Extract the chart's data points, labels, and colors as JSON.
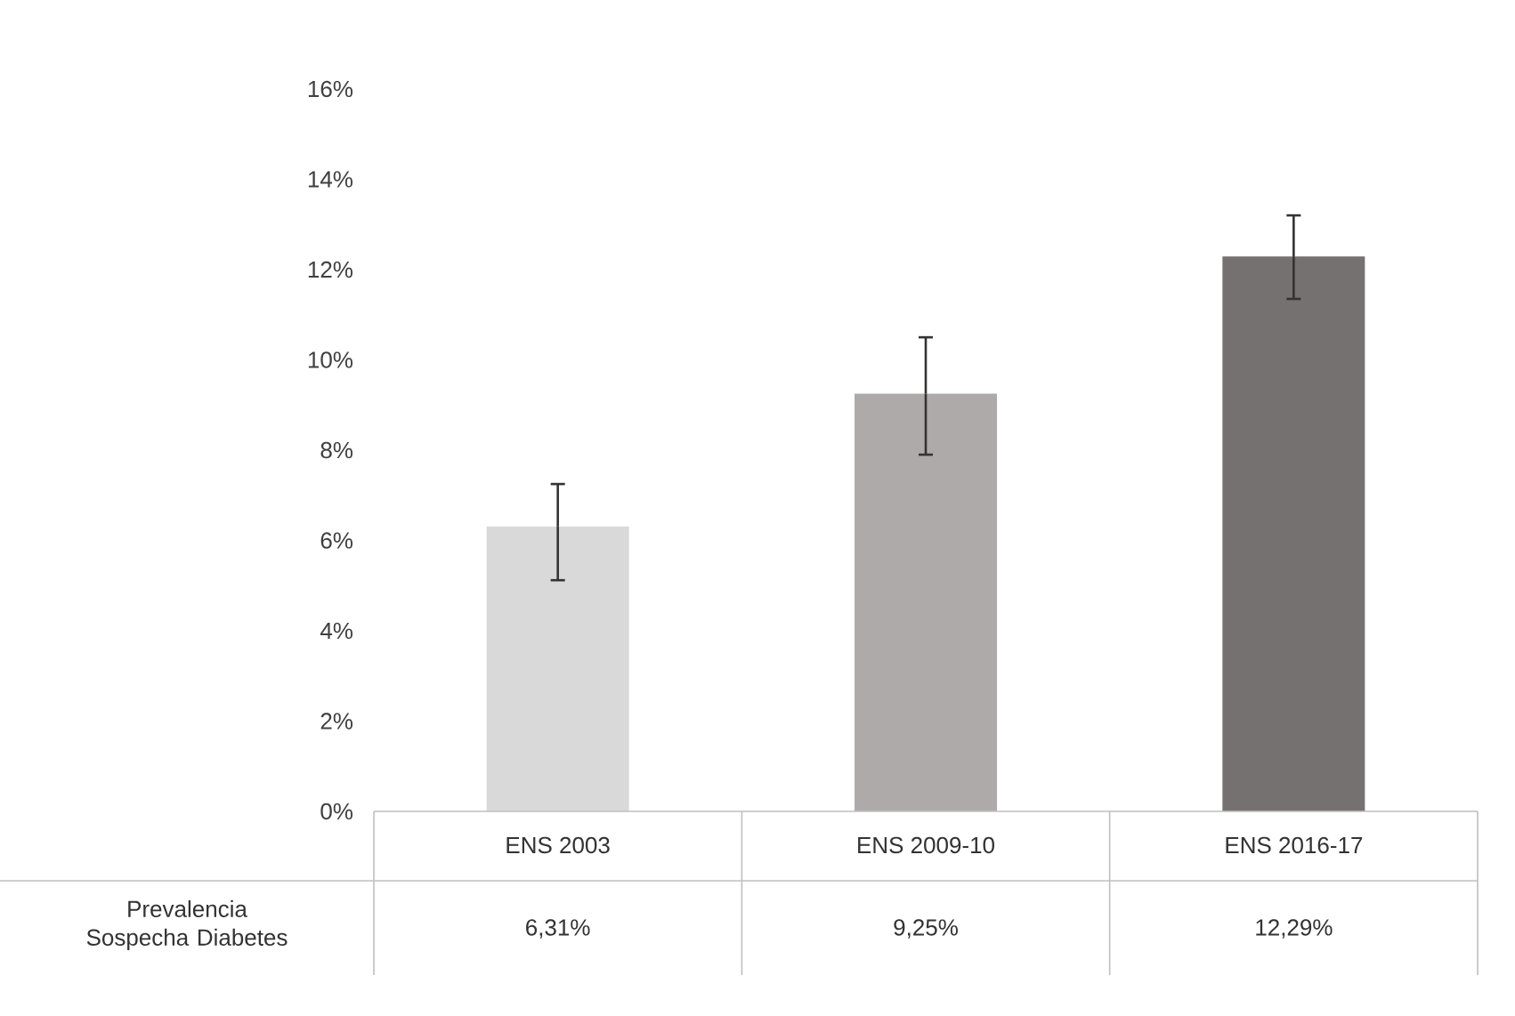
{
  "chart_data": {
    "type": "bar",
    "categories": [
      "ENS 2003",
      "ENS 2009-10",
      "ENS 2016-17"
    ],
    "series": [
      {
        "name": "Prevalencia Sospecha Diabetes",
        "colors": [
          "#d9d9d9",
          "#aeaaaa",
          "#767171"
        ],
        "values": [
          6.31,
          9.25,
          12.29
        ],
        "errors": [
          [
            5.12,
            7.25
          ],
          [
            7.9,
            10.5
          ],
          [
            11.35,
            13.2
          ]
        ],
        "value_labels": [
          "6,31%",
          "9,25%",
          "12,29%"
        ]
      }
    ],
    "ylim": [
      0,
      16
    ],
    "yticks": [
      {
        "value": 0,
        "label": "0%"
      },
      {
        "value": 2,
        "label": "2%"
      },
      {
        "value": 4,
        "label": "4%"
      },
      {
        "value": 6,
        "label": "6%"
      },
      {
        "value": 8,
        "label": "8%"
      },
      {
        "value": 10,
        "label": "10%"
      },
      {
        "value": 12,
        "label": "12%"
      },
      {
        "value": 14,
        "label": "14%"
      },
      {
        "value": 16,
        "label": "16%"
      }
    ],
    "grid": false
  }
}
